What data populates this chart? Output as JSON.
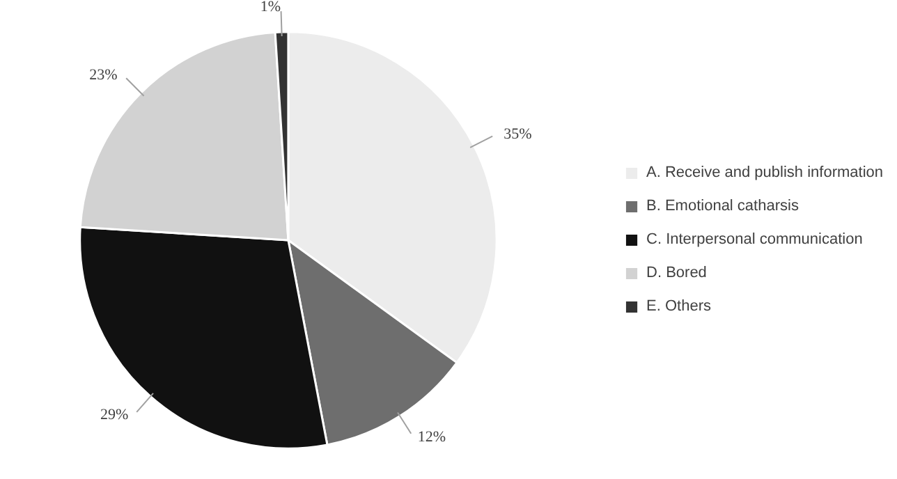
{
  "chart_data": {
    "type": "pie",
    "categories": [
      "A. Receive and publish information",
      "B. Emotional catharsis",
      "C. Interpersonal communication",
      "D. Bored",
      "E. Others"
    ],
    "values": [
      35,
      12,
      29,
      23,
      1
    ],
    "value_labels": [
      "35%",
      "12%",
      "29%",
      "23%",
      "1%"
    ],
    "colors": [
      "#ececec",
      "#6e6e6e",
      "#111111",
      "#d2d2d2",
      "#333333"
    ],
    "legend": "right"
  }
}
